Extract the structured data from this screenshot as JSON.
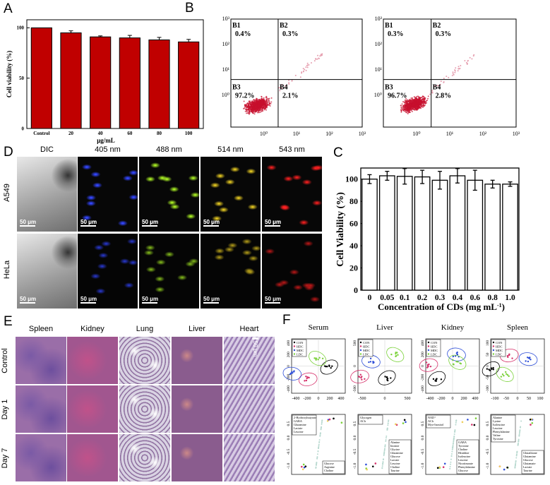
{
  "panel_labels": {
    "a": "A",
    "b": "B",
    "c": "C",
    "d": "D",
    "e": "E",
    "f": "F"
  },
  "chart_data": [
    {
      "panel": "A",
      "type": "bar",
      "categories": [
        "Control",
        "20",
        "40",
        "60",
        "80",
        "100"
      ],
      "values": [
        100,
        95,
        91,
        90,
        88,
        86
      ],
      "errors": [
        0,
        2,
        1,
        2.5,
        2.5,
        2.5
      ],
      "xlabel": "μg/mL",
      "ylabel": "Cell viability (%)",
      "ylim": [
        0,
        108
      ],
      "yticks": [
        "0",
        "50",
        "100"
      ],
      "bar_color": "#c00000"
    },
    {
      "panel": "C",
      "type": "bar",
      "categories": [
        "0",
        "0.05",
        "0.1",
        "0.2",
        "0.3",
        "0.4",
        "0.6",
        "0.8",
        "1.0"
      ],
      "values": [
        100,
        103,
        102.5,
        102,
        99,
        103,
        99,
        95.5,
        95.5
      ],
      "errors": [
        4,
        4,
        7,
        6,
        8,
        6.5,
        9,
        3.5,
        2
      ],
      "xlabel": "Concentration of CDs (mg mL",
      "xlabel_sup": "-1",
      "xlabel_end": ")",
      "ylabel": "Cell Viability (%)",
      "ylim": [
        0,
        110
      ],
      "yticks": [
        "0",
        "20",
        "40",
        "60",
        "80",
        "100"
      ],
      "bar_color": "#ffffff"
    }
  ],
  "flow": {
    "ticks": [
      "10⁰",
      "10¹",
      "10²",
      "10³"
    ],
    "plots": [
      {
        "quadrants": [
          {
            "id": "B1",
            "pct": "0.4%"
          },
          {
            "id": "B2",
            "pct": "0.3%"
          },
          {
            "id": "B3",
            "pct": "97.2%"
          },
          {
            "id": "B4",
            "pct": "2.1%"
          }
        ]
      },
      {
        "quadrants": [
          {
            "id": "B1",
            "pct": "0.3%"
          },
          {
            "id": "B2",
            "pct": "0.3%"
          },
          {
            "id": "B3",
            "pct": "96.7%"
          },
          {
            "id": "B4",
            "pct": "2.8%"
          }
        ]
      }
    ],
    "dot_color": "#c8102e"
  },
  "imaging": {
    "channels": [
      "DIC",
      "405 nm",
      "488 nm",
      "514 nm",
      "543 nm"
    ],
    "channel_colors": [
      "#9a9a9a",
      "#2a3ad8",
      "#8ac41c",
      "#b9a21a",
      "#c21818"
    ],
    "rows": [
      "A549",
      "HeLa"
    ],
    "scale_bar": "50 μm"
  },
  "histology": {
    "tissues": [
      "Spleen",
      "Kidney",
      "Lung",
      "Liver",
      "Heart"
    ],
    "rows": [
      "Control",
      "Day 1",
      "Day 7"
    ],
    "scale_bar": "50 μm"
  },
  "metabolomics": {
    "tissues": [
      "Serum",
      "Liver",
      "Kidney",
      "Spleen"
    ],
    "group_legend": [
      {
        "label": "CON",
        "color": "#000000"
      },
      {
        "label": "HDC",
        "color": "#d6336c"
      },
      {
        "label": "MDC",
        "color": "#2f4fd8"
      },
      {
        "label": "LDC",
        "color": "#7bd23a"
      }
    ],
    "top_xticks": [
      [
        "-400",
        "-200",
        "0",
        "200",
        "400"
      ],
      [
        "-500",
        "0",
        "500"
      ],
      [
        "-400",
        "-200",
        "0",
        "200",
        "400"
      ],
      [
        "-100",
        "-50",
        "0",
        "50",
        "100"
      ]
    ],
    "top_yticks": [
      [
        "-400",
        "-200",
        "0",
        "200",
        "400"
      ],
      [
        "-500",
        "0",
        "500"
      ],
      [
        "-400",
        "-200",
        "0",
        "200",
        "400"
      ],
      [
        "-100",
        "-50",
        "0",
        "50",
        "100"
      ]
    ],
    "bottom_yticks": [
      "-1.0",
      "-0.5",
      "0.0",
      "0.5"
    ],
    "loadings_legends": [
      [
        [
          "2-Hydroxybutyrate",
          "GABA",
          "Glutamine",
          "Lactate",
          "Leucine"
        ],
        [
          "Glucose",
          "Arginine",
          "Choline"
        ]
      ],
      [
        [
          "Glycogen",
          "ACh"
        ],
        [
          "Alanine",
          "Inosine",
          "Glycine",
          "Glutamine",
          "Glucose",
          "Lactate",
          "Leucine",
          "Choline",
          "Taurine"
        ]
      ],
      [
        [
          "NAD⁺",
          "ACh",
          "Myo-Inositol"
        ],
        [
          "GABA",
          "Tyrosine",
          "Choline",
          "Histidine",
          "Isoleucine",
          "Leucine",
          "Nicotinurate",
          "Phenylalanine",
          "Glucose"
        ]
      ],
      [
        [
          "Alanine",
          "Lysine",
          "Isoleucine",
          "Leucine",
          "Phenylalanine",
          "Valine",
          "Tyrosine"
        ],
        [
          "Glutathione",
          "Glutamine",
          "Glucose",
          "Glutamate",
          "Lactate",
          "Taurine"
        ]
      ]
    ]
  }
}
